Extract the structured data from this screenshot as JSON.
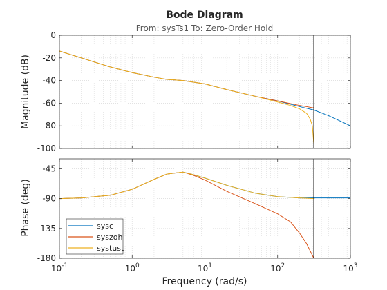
{
  "chart_data": {
    "type": "line",
    "title": "Bode Diagram",
    "subtitle": "From: sysTs1  To: Zero-Order Hold",
    "xlabel": "Frequency  (rad/s)",
    "xscale": "log",
    "xlim": [
      0.1,
      1000
    ],
    "x_ticks": [
      {
        "value": 0.1,
        "label": "10",
        "exp": "-1"
      },
      {
        "value": 1,
        "label": "10",
        "exp": "0"
      },
      {
        "value": 10,
        "label": "10",
        "exp": "1"
      },
      {
        "value": 100,
        "label": "10",
        "exp": "2"
      },
      {
        "value": 1000,
        "label": "10",
        "exp": "3"
      }
    ],
    "nyquist_line_x": 314,
    "grid": true,
    "legend_position": "bottom-left",
    "series_styles": [
      {
        "name": "sysc",
        "color": "#0072BD"
      },
      {
        "name": "syszoh",
        "color": "#D95319"
      },
      {
        "name": "systust",
        "color": "#EDB120"
      }
    ],
    "panels": [
      {
        "id": "magnitude",
        "ylabel": "Magnitude (dB)",
        "ylim": [
          -100,
          0
        ],
        "yticks": [
          0,
          -20,
          -40,
          -60,
          -80,
          -100
        ],
        "ytick_labels": [
          "0",
          "-20",
          "-40",
          "-60",
          "-80",
          "-100"
        ],
        "series": [
          {
            "name": "sysc",
            "x": [
              0.1,
              0.2,
              0.5,
              1,
              2,
              3,
              5,
              10,
              20,
              50,
              100,
              200,
              314,
              500,
              1000
            ],
            "y": [
              -14,
              -20,
              -28,
              -33,
              -37,
              -39,
              -40,
              -43,
              -48,
              -54,
              -58,
              -63,
              -66,
              -71,
              -80
            ]
          },
          {
            "name": "syszoh",
            "x": [
              0.1,
              0.2,
              0.5,
              1,
              2,
              3,
              5,
              10,
              20,
              50,
              100,
              200,
              250,
              300,
              314
            ],
            "y": [
              -14,
              -20,
              -28,
              -33,
              -37,
              -39,
              -40,
              -43,
              -48,
              -54,
              -58,
              -62,
              -63,
              -64,
              -64
            ]
          },
          {
            "name": "systust",
            "x": [
              0.1,
              0.2,
              0.5,
              1,
              2,
              3,
              5,
              10,
              20,
              50,
              100,
              150,
              200,
              250,
              280,
              300,
              314
            ],
            "y": [
              -14,
              -20,
              -28,
              -33,
              -37,
              -39,
              -40,
              -43,
              -48,
              -54,
              -59,
              -62,
              -65,
              -69,
              -74,
              -80,
              -96
            ]
          }
        ]
      },
      {
        "id": "phase",
        "ylabel": "Phase (deg)",
        "ylim": [
          -180,
          -30
        ],
        "yticks": [
          -45,
          -90,
          -135,
          -180
        ],
        "ytick_labels": [
          "-45",
          "-90",
          "-135",
          "-180"
        ],
        "series": [
          {
            "name": "sysc",
            "x": [
              0.1,
              0.2,
              0.5,
              1,
              2,
              3,
              5,
              7,
              10,
              20,
              50,
              100,
              200,
              314,
              500,
              1000
            ],
            "y": [
              -90,
              -89,
              -85,
              -76,
              -61,
              -53,
              -50,
              -54,
              -59,
              -70,
              -82,
              -87,
              -89,
              -89,
              -89,
              -89
            ]
          },
          {
            "name": "syszoh",
            "x": [
              0.1,
              0.2,
              0.5,
              1,
              2,
              3,
              5,
              7,
              10,
              20,
              50,
              100,
              150,
              200,
              250,
              314
            ],
            "y": [
              -90,
              -89,
              -85,
              -76,
              -61,
              -53,
              -50,
              -55,
              -62,
              -79,
              -98,
              -113,
              -125,
              -142,
              -158,
              -180
            ]
          },
          {
            "name": "systust",
            "x": [
              0.1,
              0.2,
              0.5,
              1,
              2,
              3,
              5,
              7,
              10,
              20,
              50,
              100,
              200,
              314
            ],
            "y": [
              -90,
              -89,
              -85,
              -76,
              -61,
              -53,
              -50,
              -54,
              -59,
              -70,
              -82,
              -87,
              -89,
              -90
            ]
          }
        ]
      }
    ]
  }
}
